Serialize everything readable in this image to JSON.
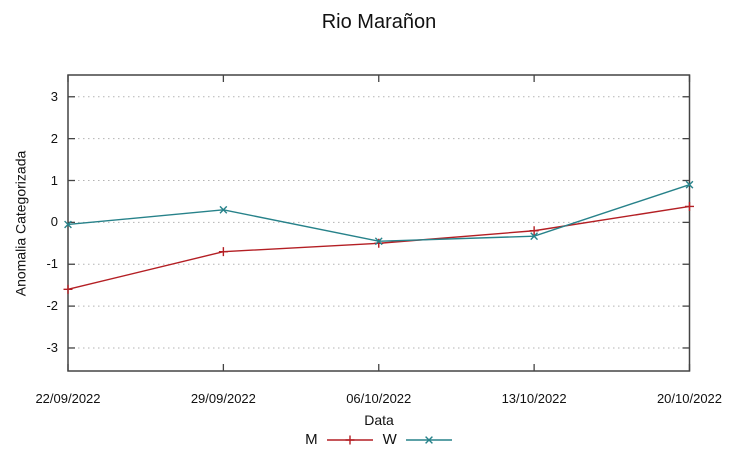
{
  "window": {
    "background": "#ffffff"
  },
  "chart_data": {
    "type": "line",
    "title": "Rio Marañon",
    "xlabel": "Data",
    "ylabel": "Anomalia Categorizada",
    "categories": [
      "22/09/2022",
      "29/09/2022",
      "06/10/2022",
      "13/10/2022",
      "20/10/2022"
    ],
    "y_ticks": [
      3,
      2,
      1,
      0,
      -1,
      -2,
      -3
    ],
    "ylim": [
      -3.55,
      3.52
    ],
    "grid": {
      "horizontal": true,
      "vertical": false,
      "style": "dotted",
      "color": "#b3b3b3"
    },
    "axis_color": "#444444",
    "text_color": "#111111",
    "legend_position": "bottom-center-below-xlabel",
    "series": [
      {
        "name": "M",
        "color": "#b41f24",
        "marker": "plus",
        "values": [
          -1.6,
          -0.7,
          -0.5,
          -0.2,
          0.38
        ]
      },
      {
        "name": "W",
        "color": "#27828a",
        "marker": "cross",
        "values": [
          -0.05,
          0.3,
          -0.45,
          -0.33,
          0.9
        ]
      }
    ]
  }
}
